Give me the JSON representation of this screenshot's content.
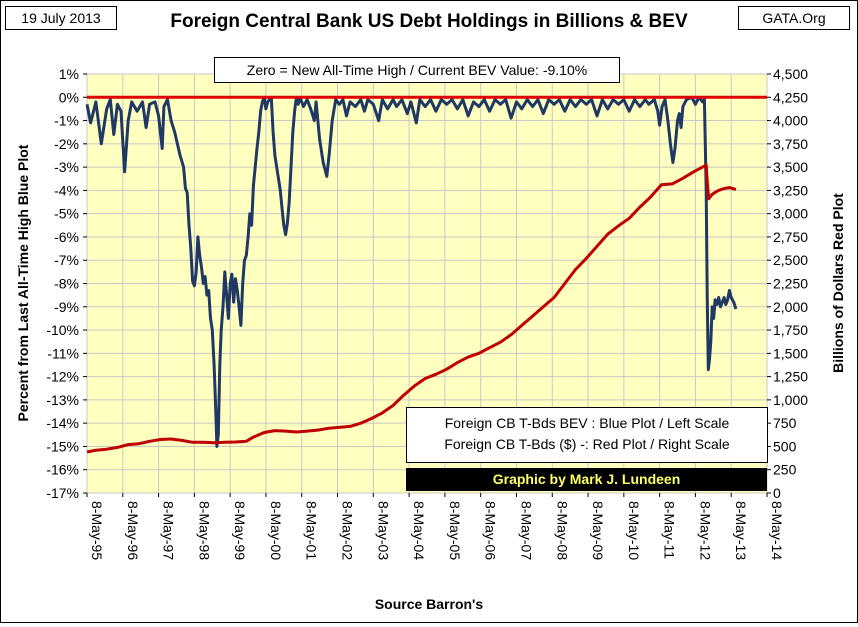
{
  "header": {
    "date_label": "19 July 2013",
    "site_label": "GATA.Org",
    "title": "Foreign Central Bank US Debt Holdings in Billions & BEV"
  },
  "annotation": "Zero = New All-Time High / Current BEV Value: -9.10%",
  "legend": {
    "line1": "Foreign CB T-Bds BEV : Blue Plot / Left Scale",
    "line2": "Foreign CB T-Bds ($)   -: Red Plot / Right Scale"
  },
  "credit": "Graphic by Mark J. Lundeen",
  "colors": {
    "plot_background": "#ffffc0",
    "blue_series": "#1f3864",
    "red_series": "#c00000",
    "zero_line": "#e00000",
    "grid": "#c8c8c8",
    "credit_text": "#ffff66"
  },
  "chart_data": {
    "type": "line",
    "title": "Foreign Central Bank US Debt Holdings in Billions & BEV",
    "xlabel": "Source Barron's",
    "ylabel_left": "Percent from Last All-Time High Blue Plot",
    "ylabel_right": "Billions of Dollars Red Plot",
    "x_ticks": [
      "8-May-95",
      "8-May-96",
      "8-May-97",
      "8-May-98",
      "8-May-99",
      "8-May-00",
      "8-May-01",
      "8-May-02",
      "8-May-03",
      "8-May-04",
      "8-May-05",
      "8-May-06",
      "8-May-07",
      "8-May-08",
      "8-May-09",
      "8-May-10",
      "8-May-11",
      "8-May-12",
      "8-May-13",
      "8-May-14"
    ],
    "x_range": [
      1995.35,
      2014.35
    ],
    "ylim_left": [
      -17,
      1
    ],
    "ylim_right": [
      0,
      4500
    ],
    "y_left_ticks": [
      "1%",
      "0%",
      "-1%",
      "-2%",
      "-3%",
      "-4%",
      "-5%",
      "-6%",
      "-7%",
      "-8%",
      "-9%",
      "-10%",
      "-11%",
      "-12%",
      "-13%",
      "-14%",
      "-15%",
      "-16%",
      "-17%"
    ],
    "y_right_ticks": [
      "4,500",
      "4,250",
      "4,000",
      "3,750",
      "3,500",
      "3,250",
      "3,000",
      "2,750",
      "2,500",
      "2,250",
      "2,000",
      "1,750",
      "1,500",
      "1,250",
      "1,000",
      "750",
      "500",
      "250",
      "0"
    ],
    "grid": true,
    "reference_line": {
      "y_left": 0
    },
    "series": [
      {
        "axis": "left",
        "color": "#1f3864",
        "points": [
          [
            1995.35,
            -0.3
          ],
          [
            1995.45,
            -1.1
          ],
          [
            1995.6,
            -0.2
          ],
          [
            1995.75,
            -2.0
          ],
          [
            1995.9,
            -0.5
          ],
          [
            1996.0,
            -0.1
          ],
          [
            1996.1,
            -1.6
          ],
          [
            1996.2,
            -0.3
          ],
          [
            1996.3,
            -0.6
          ],
          [
            1996.4,
            -3.2
          ],
          [
            1996.5,
            -1.0
          ],
          [
            1996.6,
            -0.2
          ],
          [
            1996.75,
            -0.6
          ],
          [
            1996.9,
            -0.2
          ],
          [
            1997.0,
            -1.3
          ],
          [
            1997.1,
            -0.3
          ],
          [
            1997.25,
            -0.2
          ],
          [
            1997.35,
            -0.8
          ],
          [
            1997.45,
            -2.2
          ],
          [
            1997.5,
            -0.4
          ],
          [
            1997.6,
            -0.1
          ],
          [
            1997.7,
            -1.0
          ],
          [
            1997.8,
            -1.5
          ],
          [
            1997.95,
            -2.5
          ],
          [
            1998.05,
            -3.0
          ],
          [
            1998.1,
            -3.9
          ],
          [
            1998.15,
            -4.1
          ],
          [
            1998.2,
            -5.5
          ],
          [
            1998.25,
            -6.5
          ],
          [
            1998.3,
            -7.9
          ],
          [
            1998.35,
            -8.1
          ],
          [
            1998.4,
            -7.5
          ],
          [
            1998.45,
            -6.0
          ],
          [
            1998.5,
            -6.8
          ],
          [
            1998.55,
            -7.3
          ],
          [
            1998.6,
            -8.0
          ],
          [
            1998.65,
            -7.7
          ],
          [
            1998.7,
            -8.5
          ],
          [
            1998.75,
            -8.3
          ],
          [
            1998.8,
            -9.5
          ],
          [
            1998.85,
            -10.0
          ],
          [
            1998.9,
            -11.5
          ],
          [
            1998.95,
            -13.5
          ],
          [
            1998.98,
            -15.0
          ],
          [
            1999.02,
            -14.5
          ],
          [
            1999.06,
            -11.5
          ],
          [
            1999.1,
            -10.0
          ],
          [
            1999.15,
            -9.0
          ],
          [
            1999.2,
            -7.5
          ],
          [
            1999.25,
            -8.5
          ],
          [
            1999.3,
            -9.5
          ],
          [
            1999.35,
            -8.0
          ],
          [
            1999.4,
            -7.6
          ],
          [
            1999.45,
            -8.8
          ],
          [
            1999.5,
            -7.8
          ],
          [
            1999.55,
            -8.3
          ],
          [
            1999.6,
            -9.0
          ],
          [
            1999.65,
            -9.8
          ],
          [
            1999.7,
            -8.0
          ],
          [
            1999.75,
            -7.0
          ],
          [
            1999.8,
            -6.8
          ],
          [
            1999.85,
            -6.0
          ],
          [
            1999.9,
            -5.0
          ],
          [
            1999.95,
            -5.5
          ],
          [
            2000.0,
            -3.8
          ],
          [
            2000.05,
            -3.0
          ],
          [
            2000.1,
            -2.2
          ],
          [
            2000.15,
            -1.5
          ],
          [
            2000.2,
            -0.6
          ],
          [
            2000.25,
            -0.2
          ],
          [
            2000.3,
            0.0
          ],
          [
            2000.35,
            -0.5
          ],
          [
            2000.4,
            -0.2
          ],
          [
            2000.5,
            0.0
          ],
          [
            2000.55,
            -1.5
          ],
          [
            2000.6,
            -2.5
          ],
          [
            2000.65,
            -3.0
          ],
          [
            2000.7,
            -3.5
          ],
          [
            2000.75,
            -4.0
          ],
          [
            2000.8,
            -4.8
          ],
          [
            2000.85,
            -5.5
          ],
          [
            2000.9,
            -5.9
          ],
          [
            2000.95,
            -5.4
          ],
          [
            2001.0,
            -4.5
          ],
          [
            2001.05,
            -3.0
          ],
          [
            2001.1,
            -1.5
          ],
          [
            2001.15,
            -0.6
          ],
          [
            2001.2,
            0.0
          ],
          [
            2001.25,
            -0.3
          ],
          [
            2001.3,
            0.0
          ],
          [
            2001.4,
            -0.4
          ],
          [
            2001.5,
            -0.1
          ],
          [
            2001.6,
            -0.5
          ],
          [
            2001.7,
            -1.0
          ],
          [
            2001.75,
            -0.2
          ],
          [
            2001.85,
            -1.8
          ],
          [
            2001.95,
            -2.8
          ],
          [
            2002.05,
            -3.4
          ],
          [
            2002.12,
            -2.4
          ],
          [
            2002.2,
            -1.0
          ],
          [
            2002.3,
            -0.1
          ],
          [
            2002.4,
            -0.3
          ],
          [
            2002.5,
            -0.1
          ],
          [
            2002.6,
            -0.8
          ],
          [
            2002.7,
            -0.2
          ],
          [
            2002.85,
            -0.4
          ],
          [
            2003.0,
            -0.1
          ],
          [
            2003.1,
            -0.6
          ],
          [
            2003.2,
            -0.1
          ],
          [
            2003.35,
            -0.3
          ],
          [
            2003.5,
            -1.0
          ],
          [
            2003.6,
            -0.1
          ],
          [
            2003.75,
            -0.5
          ],
          [
            2003.9,
            -0.1
          ],
          [
            2004.0,
            -0.4
          ],
          [
            2004.15,
            -0.1
          ],
          [
            2004.3,
            -0.7
          ],
          [
            2004.4,
            -0.2
          ],
          [
            2004.55,
            -1.1
          ],
          [
            2004.65,
            -0.1
          ],
          [
            2004.8,
            -0.4
          ],
          [
            2004.95,
            -0.1
          ],
          [
            2005.1,
            -0.6
          ],
          [
            2005.25,
            -0.1
          ],
          [
            2005.4,
            -0.3
          ],
          [
            2005.55,
            -0.1
          ],
          [
            2005.7,
            -0.5
          ],
          [
            2005.85,
            -0.1
          ],
          [
            2006.0,
            -0.8
          ],
          [
            2006.15,
            -0.2
          ],
          [
            2006.3,
            -0.4
          ],
          [
            2006.45,
            -0.1
          ],
          [
            2006.6,
            -0.6
          ],
          [
            2006.75,
            -0.1
          ],
          [
            2006.9,
            -0.3
          ],
          [
            2007.05,
            -0.1
          ],
          [
            2007.2,
            -0.9
          ],
          [
            2007.35,
            -0.2
          ],
          [
            2007.5,
            -0.5
          ],
          [
            2007.65,
            -0.1
          ],
          [
            2007.8,
            -0.4
          ],
          [
            2007.95,
            -0.1
          ],
          [
            2008.1,
            -0.7
          ],
          [
            2008.25,
            -0.1
          ],
          [
            2008.4,
            -0.3
          ],
          [
            2008.55,
            -0.1
          ],
          [
            2008.7,
            -0.6
          ],
          [
            2008.85,
            -0.1
          ],
          [
            2009.0,
            -0.4
          ],
          [
            2009.15,
            -0.1
          ],
          [
            2009.3,
            -0.3
          ],
          [
            2009.45,
            -0.1
          ],
          [
            2009.6,
            -0.8
          ],
          [
            2009.75,
            -0.1
          ],
          [
            2009.9,
            -0.5
          ],
          [
            2010.05,
            -0.1
          ],
          [
            2010.2,
            -0.3
          ],
          [
            2010.35,
            -0.1
          ],
          [
            2010.5,
            -0.6
          ],
          [
            2010.65,
            -0.1
          ],
          [
            2010.8,
            -0.4
          ],
          [
            2010.95,
            -0.1
          ],
          [
            2011.05,
            -0.3
          ],
          [
            2011.2,
            -0.1
          ],
          [
            2011.3,
            -0.6
          ],
          [
            2011.35,
            -1.2
          ],
          [
            2011.42,
            -0.4
          ],
          [
            2011.5,
            -0.1
          ],
          [
            2011.58,
            -1.0
          ],
          [
            2011.65,
            -2.0
          ],
          [
            2011.72,
            -2.8
          ],
          [
            2011.78,
            -2.2
          ],
          [
            2011.85,
            -1.0
          ],
          [
            2011.9,
            -0.7
          ],
          [
            2011.95,
            -1.3
          ],
          [
            2012.0,
            -0.4
          ],
          [
            2012.1,
            -0.1
          ],
          [
            2012.25,
            0.0
          ],
          [
            2012.35,
            -0.3
          ],
          [
            2012.45,
            0.0
          ],
          [
            2012.55,
            -0.2
          ],
          [
            2012.6,
            -0.1
          ],
          [
            2012.65,
            -4.0
          ],
          [
            2012.68,
            -8.5
          ],
          [
            2012.71,
            -11.7
          ],
          [
            2012.74,
            -11.3
          ],
          [
            2012.78,
            -10.5
          ],
          [
            2012.82,
            -9.0
          ],
          [
            2012.86,
            -9.5
          ],
          [
            2012.9,
            -8.7
          ],
          [
            2012.95,
            -8.9
          ],
          [
            2013.0,
            -8.6
          ],
          [
            2013.05,
            -9.0
          ],
          [
            2013.1,
            -8.8
          ],
          [
            2013.15,
            -8.6
          ],
          [
            2013.2,
            -8.9
          ],
          [
            2013.25,
            -8.7
          ],
          [
            2013.3,
            -8.3
          ],
          [
            2013.35,
            -8.6
          ],
          [
            2013.42,
            -8.8
          ],
          [
            2013.48,
            -9.1
          ]
        ]
      },
      {
        "axis": "right",
        "color": "#c00000",
        "points": [
          [
            1995.35,
            440
          ],
          [
            1995.6,
            460
          ],
          [
            1995.9,
            470
          ],
          [
            1996.2,
            490
          ],
          [
            1996.5,
            520
          ],
          [
            1996.8,
            530
          ],
          [
            1997.1,
            555
          ],
          [
            1997.4,
            575
          ],
          [
            1997.7,
            580
          ],
          [
            1998.0,
            565
          ],
          [
            1998.3,
            545
          ],
          [
            1998.6,
            545
          ],
          [
            1998.9,
            540
          ],
          [
            1999.2,
            545
          ],
          [
            1999.5,
            548
          ],
          [
            1999.8,
            555
          ],
          [
            2000.0,
            600
          ],
          [
            2000.3,
            650
          ],
          [
            2000.6,
            670
          ],
          [
            2000.9,
            665
          ],
          [
            2001.2,
            655
          ],
          [
            2001.5,
            665
          ],
          [
            2001.8,
            675
          ],
          [
            2002.1,
            695
          ],
          [
            2002.4,
            705
          ],
          [
            2002.7,
            715
          ],
          [
            2003.0,
            750
          ],
          [
            2003.3,
            800
          ],
          [
            2003.6,
            860
          ],
          [
            2003.9,
            940
          ],
          [
            2004.2,
            1050
          ],
          [
            2004.5,
            1150
          ],
          [
            2004.8,
            1230
          ],
          [
            2005.1,
            1275
          ],
          [
            2005.4,
            1330
          ],
          [
            2005.7,
            1400
          ],
          [
            2006.0,
            1460
          ],
          [
            2006.3,
            1500
          ],
          [
            2006.6,
            1560
          ],
          [
            2006.9,
            1620
          ],
          [
            2007.2,
            1700
          ],
          [
            2007.5,
            1800
          ],
          [
            2007.8,
            1900
          ],
          [
            2008.1,
            2000
          ],
          [
            2008.4,
            2100
          ],
          [
            2008.7,
            2250
          ],
          [
            2009.0,
            2400
          ],
          [
            2009.3,
            2520
          ],
          [
            2009.6,
            2650
          ],
          [
            2009.9,
            2780
          ],
          [
            2010.2,
            2870
          ],
          [
            2010.5,
            2950
          ],
          [
            2010.8,
            3070
          ],
          [
            2011.1,
            3180
          ],
          [
            2011.4,
            3310
          ],
          [
            2011.7,
            3320
          ],
          [
            2012.0,
            3380
          ],
          [
            2012.3,
            3450
          ],
          [
            2012.55,
            3500
          ],
          [
            2012.65,
            3520
          ],
          [
            2012.68,
            3350
          ],
          [
            2012.72,
            3160
          ],
          [
            2012.8,
            3200
          ],
          [
            2012.9,
            3230
          ],
          [
            2013.0,
            3250
          ],
          [
            2013.15,
            3270
          ],
          [
            2013.3,
            3280
          ],
          [
            2013.48,
            3260
          ]
        ]
      }
    ]
  }
}
